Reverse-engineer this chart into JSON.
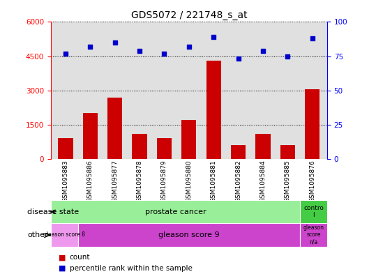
{
  "title": "GDS5072 / 221748_s_at",
  "samples": [
    "GSM1095883",
    "GSM1095886",
    "GSM1095877",
    "GSM1095878",
    "GSM1095879",
    "GSM1095880",
    "GSM1095881",
    "GSM1095882",
    "GSM1095884",
    "GSM1095885",
    "GSM1095876"
  ],
  "counts": [
    900,
    2000,
    2700,
    1100,
    900,
    1700,
    4300,
    600,
    1100,
    600,
    3050
  ],
  "percentiles": [
    77,
    82,
    85,
    79,
    77,
    82,
    89,
    73,
    79,
    75,
    88
  ],
  "ylim_left": [
    0,
    6000
  ],
  "ylim_right": [
    0,
    100
  ],
  "yticks_left": [
    0,
    1500,
    3000,
    4500,
    6000
  ],
  "yticks_right": [
    0,
    25,
    50,
    75,
    100
  ],
  "bar_color": "#cc0000",
  "dot_color": "#0000cc",
  "disease_state_prostate_color": "#99ee99",
  "disease_state_control_color": "#44cc44",
  "gleason8_color": "#ee99ee",
  "gleason9_color": "#cc44cc",
  "gleasonna_color": "#cc44cc",
  "row_labels": [
    "disease state",
    "other"
  ],
  "legend_items": [
    {
      "color": "#cc0000",
      "label": "count"
    },
    {
      "color": "#0000cc",
      "label": "percentile rank within the sample"
    }
  ],
  "background_color": "#ffffff",
  "plot_bg_color": "#e0e0e0",
  "grid_color": "#000000",
  "title_fontsize": 10
}
